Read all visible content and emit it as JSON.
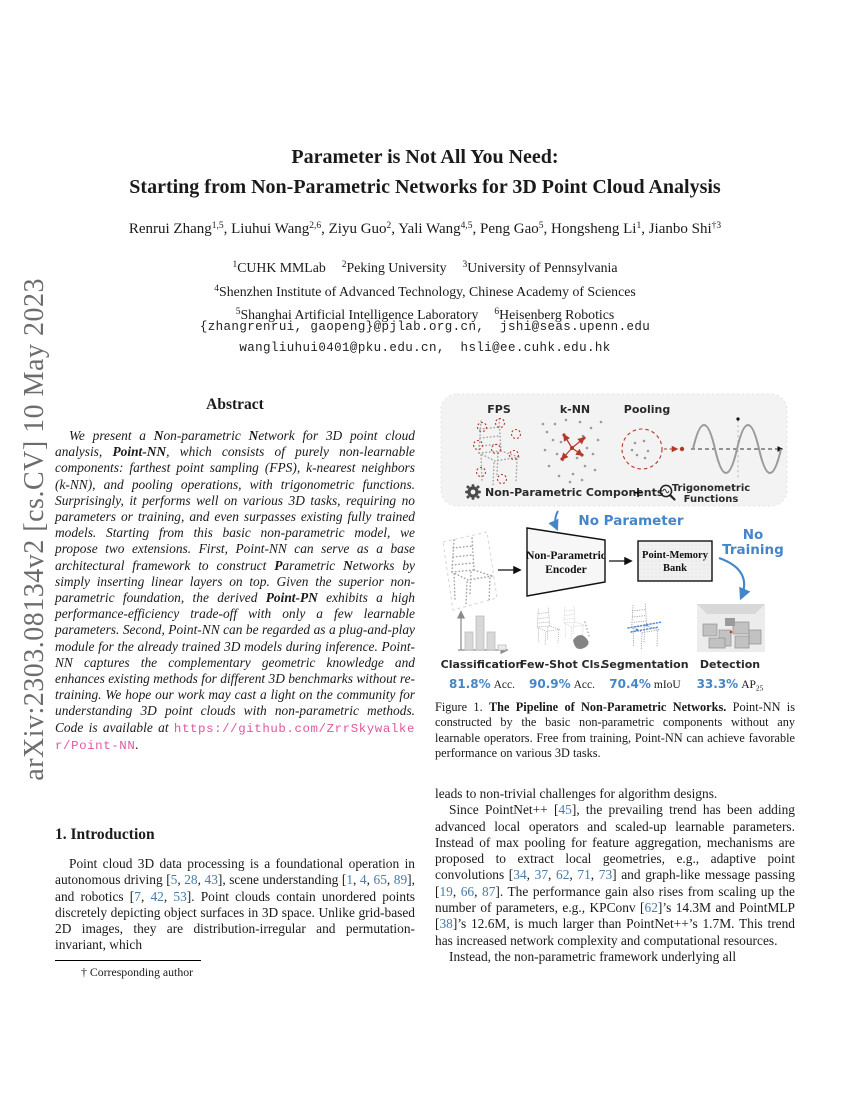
{
  "arxiv_banner": "arXiv:2303.08134v2  [cs.CV]  10 May 2023",
  "title": {
    "line1": "Parameter is Not All You Need:",
    "line2": "Starting from Non-Parametric Networks for 3D Point Cloud Analysis"
  },
  "authors_rich": [
    {
      "t": "Renrui Zhang"
    },
    {
      "t": "1,5",
      "s": "sup"
    },
    {
      "t": ", Liuhui Wang"
    },
    {
      "t": "2,6",
      "s": "sup"
    },
    {
      "t": ", Ziyu Guo"
    },
    {
      "t": "2",
      "s": "sup"
    },
    {
      "t": ", Yali Wang"
    },
    {
      "t": "4,5",
      "s": "sup"
    },
    {
      "t": ", Peng Gao"
    },
    {
      "t": "5",
      "s": "sup"
    },
    {
      "t": ", Hongsheng Li"
    },
    {
      "t": "1",
      "s": "sup"
    },
    {
      "t": ", Jianbo Shi"
    },
    {
      "t": "†3",
      "s": "sup"
    }
  ],
  "affiliations": {
    "line1": [
      {
        "t": "1",
        "s": "sup"
      },
      {
        "t": "CUHK MMLab"
      },
      {
        "t": "",
        "s": "gap"
      },
      {
        "t": "2",
        "s": "sup"
      },
      {
        "t": "Peking University"
      },
      {
        "t": "",
        "s": "gap"
      },
      {
        "t": "3",
        "s": "sup"
      },
      {
        "t": "University of Pennsylvania"
      }
    ],
    "line2": [
      {
        "t": "4",
        "s": "sup"
      },
      {
        "t": "Shenzhen Institute of Advanced Technology, Chinese Academy of Sciences"
      }
    ],
    "line3": [
      {
        "t": "5",
        "s": "sup"
      },
      {
        "t": "Shanghai Artificial Intelligence Laboratory"
      },
      {
        "t": "",
        "s": "gap"
      },
      {
        "t": "6",
        "s": "sup"
      },
      {
        "t": "Heisenberg Robotics"
      }
    ]
  },
  "emails": {
    "line1": "{zhangrenrui, gaopeng}@pjlab.org.cn,  jshi@seas.upenn.edu",
    "line2": "wangliuhui0401@pku.edu.cn,  hsli@ee.cuhk.edu.hk"
  },
  "abstract": {
    "heading": "Abstract",
    "segments": [
      {
        "t": "We present a "
      },
      {
        "t": "N",
        "s": "b"
      },
      {
        "t": "on-parametric "
      },
      {
        "t": "N",
        "s": "b"
      },
      {
        "t": "etwork for 3D point cloud analysis, "
      },
      {
        "t": "Point-NN",
        "s": "b"
      },
      {
        "t": ", which consists of purely non-learnable components: farthest point sampling (FPS), k-nearest neighbors (k-NN), and pooling operations, with trigonometric functions. Surprisingly, it performs well on various 3D tasks, requiring no parameters or training, and even surpasses existing fully trained models. Starting from this basic non-parametric model, we propose two extensions. First, Point-NN can serve as a base architectural framework to construct "
      },
      {
        "t": "P",
        "s": "b"
      },
      {
        "t": "arametric "
      },
      {
        "t": "N",
        "s": "b"
      },
      {
        "t": "etworks by simply inserting linear layers on top. Given the superior non-parametric foundation, the derived "
      },
      {
        "t": "Point-PN",
        "s": "b"
      },
      {
        "t": " exhibits a high performance-efficiency trade-off with only a few learnable parameters. Second, Point-NN can be regarded as a plug-and-play module for the already trained 3D models during inference. Point-NN captures the complementary geometric knowledge and enhances existing methods for different 3D benchmarks without re-training. We hope our work may cast a light on the community for understanding 3D point clouds with non-parametric methods. Code is available at "
      },
      {
        "t": "https://github.com/ZrrSkywalker/Point-NN",
        "s": "url"
      },
      {
        "t": "."
      }
    ]
  },
  "figure": {
    "components_panel": {
      "fps_label": "FPS",
      "knn_label": "k-NN",
      "pooling_label": "Pooling",
      "components_label": "Non-Parametric Components",
      "plus": "+",
      "trig_label_1": "Trigonometric",
      "trig_label_2": "Functions"
    },
    "pipeline": {
      "no_parameter": "No Parameter",
      "no_training_1": "No",
      "no_training_2": "Training",
      "encoder_line1": "Non-Parametric",
      "encoder_line2": "Encoder",
      "bank_line1": "Point-Memory",
      "bank_line2": "Bank"
    },
    "tasks": [
      {
        "label": "Classification",
        "value": "81.8%",
        "unit": "Acc.",
        "unit_sub": ""
      },
      {
        "label": "Few-Shot Cls.",
        "value": "90.9%",
        "unit": "Acc.",
        "unit_sub": ""
      },
      {
        "label": "Segmentation",
        "value": "70.4%",
        "unit": "mIoU",
        "unit_sub": ""
      },
      {
        "label": "Detection",
        "value": "33.3%",
        "unit": "AP",
        "unit_sub": "25"
      }
    ],
    "caption": [
      {
        "t": "Figure 1. "
      },
      {
        "t": "The Pipeline of Non-Parametric Networks.",
        "s": "b"
      },
      {
        "t": " Point-NN is constructed by the basic non-parametric components without any learnable operators. Free from training, Point-NN can achieve favorable performance on various 3D tasks."
      }
    ]
  },
  "introduction": {
    "heading": "1. Introduction",
    "p1": [
      {
        "t": "Point cloud 3D data processing is a foundational operation in autonomous driving ["
      },
      {
        "t": "5",
        "s": "cite"
      },
      {
        "t": ", "
      },
      {
        "t": "28",
        "s": "cite"
      },
      {
        "t": ", "
      },
      {
        "t": "43",
        "s": "cite"
      },
      {
        "t": "], scene understanding ["
      },
      {
        "t": "1",
        "s": "cite"
      },
      {
        "t": ", "
      },
      {
        "t": "4",
        "s": "cite"
      },
      {
        "t": ", "
      },
      {
        "t": "65",
        "s": "cite"
      },
      {
        "t": ", "
      },
      {
        "t": "89",
        "s": "cite"
      },
      {
        "t": "], and robotics ["
      },
      {
        "t": "7",
        "s": "cite"
      },
      {
        "t": ", "
      },
      {
        "t": "42",
        "s": "cite"
      },
      {
        "t": ", "
      },
      {
        "t": "53",
        "s": "cite"
      },
      {
        "t": "]. Point clouds contain unordered points discretely depicting object surfaces in 3D space. Unlike grid-based 2D images, they are distribution-irregular and permutation-invariant, which"
      }
    ]
  },
  "right_column": {
    "p1": [
      {
        "t": "leads to non-trivial challenges for algorithm designs."
      }
    ],
    "p2": [
      {
        "t": "Since PointNet++ ["
      },
      {
        "t": "45",
        "s": "cite"
      },
      {
        "t": "], the prevailing trend has been adding advanced local operators and scaled-up learnable parameters. Instead of max pooling for feature aggregation, mechanisms are proposed to extract local geometries, e.g., adaptive point convolutions ["
      },
      {
        "t": "34",
        "s": "cite"
      },
      {
        "t": ", "
      },
      {
        "t": "37",
        "s": "cite"
      },
      {
        "t": ", "
      },
      {
        "t": "62",
        "s": "cite"
      },
      {
        "t": ", "
      },
      {
        "t": "71",
        "s": "cite"
      },
      {
        "t": ", "
      },
      {
        "t": "73",
        "s": "cite"
      },
      {
        "t": "] and graph-like message passing ["
      },
      {
        "t": "19",
        "s": "cite"
      },
      {
        "t": ", "
      },
      {
        "t": "66",
        "s": "cite"
      },
      {
        "t": ", "
      },
      {
        "t": "87",
        "s": "cite"
      },
      {
        "t": "]. The performance gain also rises from scaling up the number of parameters, e.g., KPConv ["
      },
      {
        "t": "62",
        "s": "cite"
      },
      {
        "t": "]’s 14.3M and PointMLP ["
      },
      {
        "t": "38",
        "s": "cite"
      },
      {
        "t": "]’s 12.6M, is much larger than PointNet++’s 1.7M. This trend has increased network complexity and computational resources."
      }
    ],
    "p3": [
      {
        "t": "Instead, the non-parametric framework underlying all"
      }
    ]
  },
  "footnote": "† Corresponding author",
  "colors": {
    "citation": "#4a7ba6",
    "code_link": "#e0569f",
    "figure_accent_blue": "#4585c9",
    "figure_accent_red": "#b5372a",
    "panel_background": "#f3f3f3"
  }
}
